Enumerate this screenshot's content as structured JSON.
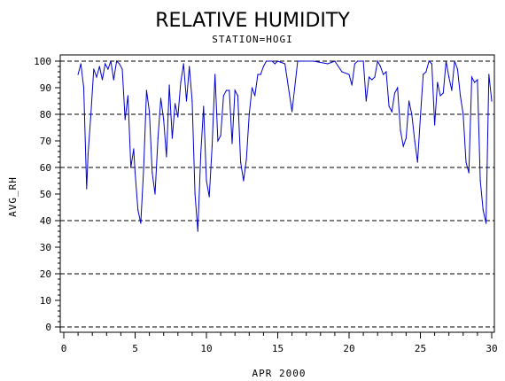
{
  "chart_data": {
    "type": "line",
    "title": "RELATIVE HUMIDITY",
    "subtitle": "STATION=HOGI",
    "xlabel": "APR 2000",
    "ylabel": "AVG_RH",
    "xlim": [
      0,
      30
    ],
    "ylim": [
      0,
      100
    ],
    "x_ticks": [
      0,
      5,
      10,
      15,
      20,
      25,
      30
    ],
    "y_ticks": [
      0,
      10,
      20,
      30,
      40,
      50,
      60,
      70,
      80,
      90,
      100
    ],
    "reference_lines": [
      0,
      20,
      40,
      60,
      80,
      100
    ],
    "line_color": "#0000cc",
    "series": [
      {
        "x": [
          1.0,
          1.2,
          1.4,
          1.6,
          1.7,
          1.9,
          2.1,
          2.3,
          2.5,
          2.7,
          2.9,
          3.1,
          3.3,
          3.5,
          3.7,
          3.9,
          4.1,
          4.3,
          4.5,
          4.7,
          4.9,
          5.0,
          5.2,
          5.4,
          5.6,
          5.8,
          6.0,
          6.2,
          6.4,
          6.6,
          6.8,
          7.0,
          7.2,
          7.4,
          7.6,
          7.8,
          8.0,
          8.2,
          8.4,
          8.6,
          8.8,
          9.0,
          9.2,
          9.4,
          9.6,
          9.8,
          10.0,
          10.2,
          10.4,
          10.6,
          10.8,
          11.0,
          11.2,
          11.4,
          11.6,
          11.8,
          12.0,
          12.2,
          12.4,
          12.6,
          12.8,
          13.0,
          13.2,
          13.4,
          13.6,
          13.8,
          14.0,
          14.2,
          14.4,
          14.6,
          14.8,
          15.0,
          15.5,
          16.0,
          16.4,
          16.6,
          16.8,
          17.5,
          18.5,
          19.0,
          19.5,
          20.0,
          20.2,
          20.4,
          20.6,
          20.8,
          21.0,
          21.2,
          21.4,
          21.6,
          21.8,
          22.0,
          22.2,
          22.4,
          22.6,
          22.8,
          23.0,
          23.2,
          23.4,
          23.6,
          23.8,
          24.0,
          24.2,
          24.4,
          24.6,
          24.8,
          25.0,
          25.2,
          25.4,
          25.6,
          25.8,
          26.0,
          26.2,
          26.4,
          26.6,
          26.8,
          27.0,
          27.2,
          27.4,
          27.6,
          27.8,
          28.0,
          28.2,
          28.4,
          28.6,
          28.8,
          29.0,
          29.2,
          29.4,
          29.6,
          29.8,
          30.0
        ],
        "values": [
          95,
          99,
          90,
          52,
          65,
          80,
          97,
          94,
          98,
          93,
          99,
          97,
          100,
          93,
          100,
          99,
          97,
          78,
          87,
          60,
          67,
          58,
          44,
          39,
          60,
          89,
          81,
          58,
          50,
          71,
          86,
          78,
          64,
          91,
          71,
          84,
          79,
          92,
          99,
          85,
          98,
          85,
          50,
          36,
          65,
          83,
          55,
          49,
          68,
          95,
          70,
          72,
          87,
          89,
          89,
          69,
          89,
          87,
          62,
          55,
          63,
          80,
          90,
          87,
          95,
          95,
          98,
          100,
          100,
          100,
          99,
          100,
          99,
          81,
          100,
          100,
          100,
          100,
          99,
          100,
          96,
          95,
          91,
          99,
          100,
          100,
          100,
          85,
          94,
          93,
          94,
          100,
          98,
          95,
          96,
          83,
          81,
          88,
          90,
          74,
          68,
          71,
          85,
          80,
          70,
          62,
          79,
          95,
          96,
          100,
          99,
          76,
          92,
          87,
          88,
          100,
          94,
          89,
          100,
          97,
          87,
          80,
          62,
          58,
          94,
          92,
          93,
          55,
          44,
          39,
          95,
          85
        ]
      }
    ]
  }
}
